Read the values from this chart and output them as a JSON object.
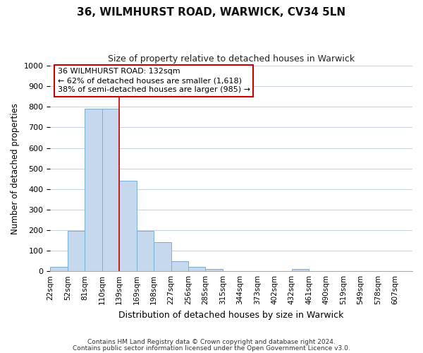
{
  "title": "36, WILMHURST ROAD, WARWICK, CV34 5LN",
  "subtitle": "Size of property relative to detached houses in Warwick",
  "xlabel": "Distribution of detached houses by size in Warwick",
  "ylabel": "Number of detached properties",
  "bar_color": "#c5d8ee",
  "bar_edge_color": "#7aafd4",
  "bin_labels": [
    "22sqm",
    "52sqm",
    "81sqm",
    "110sqm",
    "139sqm",
    "169sqm",
    "198sqm",
    "227sqm",
    "256sqm",
    "285sqm",
    "315sqm",
    "344sqm",
    "373sqm",
    "402sqm",
    "432sqm",
    "461sqm",
    "490sqm",
    "519sqm",
    "549sqm",
    "578sqm",
    "607sqm"
  ],
  "bar_heights": [
    20,
    196,
    789,
    789,
    440,
    196,
    140,
    50,
    20,
    10,
    0,
    0,
    0,
    0,
    10,
    0,
    0,
    0,
    0,
    0,
    0
  ],
  "ylim": [
    0,
    1000
  ],
  "yticks": [
    0,
    100,
    200,
    300,
    400,
    500,
    600,
    700,
    800,
    900,
    1000
  ],
  "property_line_x": 4.0,
  "annotation_title": "36 WILMHURST ROAD: 132sqm",
  "annotation_line1": "← 62% of detached houses are smaller (1,618)",
  "annotation_line2": "38% of semi-detached houses are larger (985) →",
  "annotation_box_color": "#ffffff",
  "annotation_box_edge_color": "#cc0000",
  "vline_color": "#cc0000",
  "footer_line1": "Contains HM Land Registry data © Crown copyright and database right 2024.",
  "footer_line2": "Contains public sector information licensed under the Open Government Licence v3.0.",
  "background_color": "#ffffff",
  "grid_color": "#c8d4e0"
}
